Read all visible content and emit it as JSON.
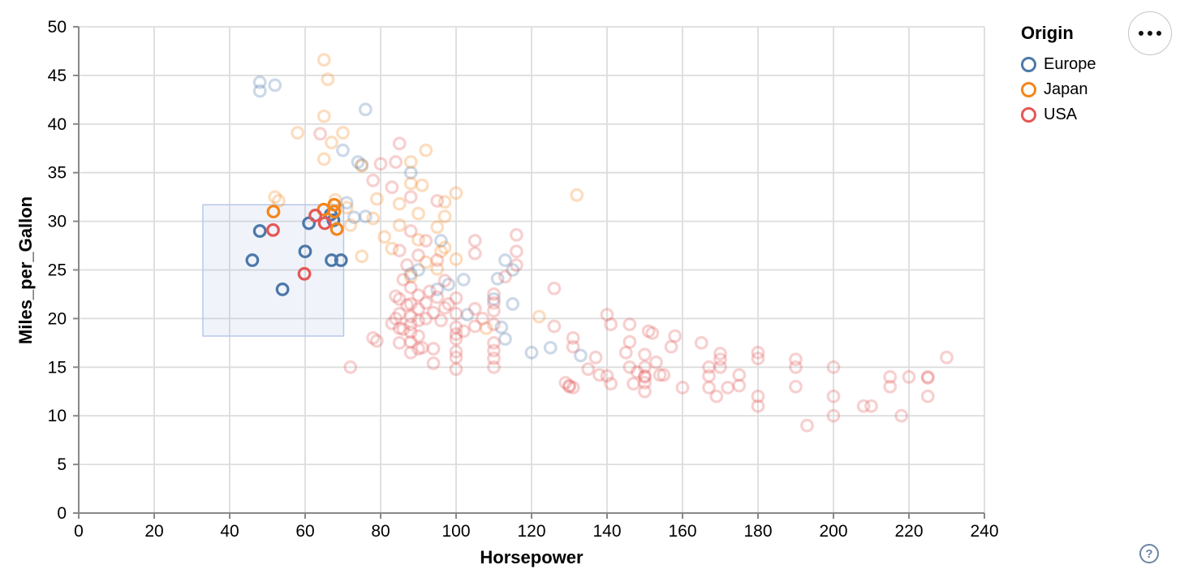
{
  "controls": {
    "menu_tooltip": "options",
    "help_glyph": "?"
  },
  "chart_data": {
    "type": "scatter",
    "title": "",
    "xlabel": "Horsepower",
    "ylabel": "Miles_per_Gallon",
    "xlim": [
      0,
      240
    ],
    "ylim": [
      0,
      50
    ],
    "x_ticks": [
      0,
      20,
      40,
      60,
      80,
      100,
      120,
      140,
      160,
      180,
      200,
      220,
      240
    ],
    "y_ticks": [
      0,
      5,
      10,
      15,
      20,
      25,
      30,
      35,
      40,
      45,
      50
    ],
    "grid": true,
    "mark": {
      "shape": "ring",
      "radius": 6.8,
      "stroke_width": 3.2,
      "unselected_opacity": 0.28
    },
    "colors": {
      "Europe": "#4c78a8",
      "Japan": "#f58518",
      "USA": "#e45756",
      "grid": "#dddddd",
      "axis": "#888888",
      "label": "#000000",
      "brush_fill": "rgba(130,160,210,0.12)",
      "brush_stroke": "#b5c8e8"
    },
    "legend": {
      "title": "Origin",
      "position": "top-right",
      "entries": [
        {
          "label": "Europe",
          "color_key": "Europe"
        },
        {
          "label": "Japan",
          "color_key": "Japan"
        },
        {
          "label": "USA",
          "color_key": "USA"
        }
      ]
    },
    "brush_selection": {
      "hp": [
        32.9,
        70.2
      ],
      "mpg": [
        18.2,
        31.7
      ]
    },
    "points_format": [
      "horsepower",
      "miles_per_gallon",
      "origin(E|J|U)",
      "selected(1|0)"
    ],
    "points": [
      [
        46,
        26,
        "E",
        1
      ],
      [
        48,
        29,
        "E",
        1
      ],
      [
        54,
        23,
        "E",
        1
      ],
      [
        60,
        26.9,
        "E",
        1
      ],
      [
        61,
        29.8,
        "E",
        1
      ],
      [
        67,
        26,
        "E",
        1
      ],
      [
        69.5,
        26,
        "E",
        1
      ],
      [
        66.8,
        30.7,
        "E",
        1
      ],
      [
        67.5,
        30.1,
        "E",
        1
      ],
      [
        51.6,
        31,
        "J",
        1
      ],
      [
        64.9,
        31.2,
        "J",
        1
      ],
      [
        67.7,
        31.7,
        "J",
        1
      ],
      [
        67.7,
        31,
        "J",
        1
      ],
      [
        68.4,
        29.2,
        "J",
        1
      ],
      [
        51.5,
        29.1,
        "U",
        1
      ],
      [
        59.8,
        24.6,
        "U",
        1
      ],
      [
        62.7,
        30.6,
        "U",
        1
      ],
      [
        65.2,
        29.8,
        "U",
        1
      ],
      [
        48,
        43.4,
        "E",
        0
      ],
      [
        48,
        44.3,
        "E",
        0
      ],
      [
        52,
        44,
        "E",
        0
      ],
      [
        76,
        41.5,
        "E",
        0
      ],
      [
        70,
        37.3,
        "E",
        0
      ],
      [
        74,
        36.1,
        "E",
        0
      ],
      [
        75,
        35.8,
        "E",
        0
      ],
      [
        88,
        35,
        "E",
        0
      ],
      [
        71,
        31.9,
        "E",
        0
      ],
      [
        76,
        30.5,
        "E",
        0
      ],
      [
        73,
        30.4,
        "E",
        0
      ],
      [
        96,
        28,
        "E",
        0
      ],
      [
        90,
        25,
        "E",
        0
      ],
      [
        88,
        24.6,
        "E",
        0
      ],
      [
        95,
        23,
        "E",
        0
      ],
      [
        113,
        26,
        "E",
        0
      ],
      [
        115,
        25,
        "E",
        0
      ],
      [
        111,
        24.1,
        "E",
        0
      ],
      [
        110,
        22,
        "E",
        0
      ],
      [
        103,
        20.4,
        "E",
        0
      ],
      [
        112,
        19.1,
        "E",
        0
      ],
      [
        113,
        17.9,
        "E",
        0
      ],
      [
        125,
        17,
        "E",
        0
      ],
      [
        133,
        16.2,
        "E",
        0
      ],
      [
        98,
        23.5,
        "E",
        0
      ],
      [
        102,
        24,
        "E",
        0
      ],
      [
        115,
        21.5,
        "E",
        0
      ],
      [
        120,
        16.5,
        "E",
        0
      ],
      [
        65,
        46.6,
        "J",
        0
      ],
      [
        66,
        44.6,
        "J",
        0
      ],
      [
        65,
        40.8,
        "J",
        0
      ],
      [
        67,
        38.1,
        "J",
        0
      ],
      [
        70,
        39.1,
        "J",
        0
      ],
      [
        58,
        39.1,
        "J",
        0
      ],
      [
        65,
        36.4,
        "J",
        0
      ],
      [
        92,
        37.3,
        "J",
        0
      ],
      [
        88,
        36.1,
        "J",
        0
      ],
      [
        88,
        33.9,
        "J",
        0
      ],
      [
        91,
        33.7,
        "J",
        0
      ],
      [
        100,
        32.9,
        "J",
        0
      ],
      [
        97,
        32,
        "J",
        0
      ],
      [
        132,
        32.7,
        "J",
        0
      ],
      [
        52,
        32.5,
        "J",
        0
      ],
      [
        53,
        32.1,
        "J",
        0
      ],
      [
        75,
        35.7,
        "J",
        0
      ],
      [
        68,
        32.2,
        "J",
        0
      ],
      [
        71,
        31.4,
        "J",
        0
      ],
      [
        72,
        29.6,
        "J",
        0
      ],
      [
        75,
        26.4,
        "J",
        0
      ],
      [
        78,
        30.3,
        "J",
        0
      ],
      [
        81,
        28.4,
        "J",
        0
      ],
      [
        83,
        27.2,
        "J",
        0
      ],
      [
        85,
        29.6,
        "J",
        0
      ],
      [
        88,
        24.3,
        "J",
        0
      ],
      [
        90,
        28.1,
        "J",
        0
      ],
      [
        92,
        25.8,
        "J",
        0
      ],
      [
        95,
        25.1,
        "J",
        0
      ],
      [
        97,
        30.5,
        "J",
        0
      ],
      [
        97,
        27.3,
        "J",
        0
      ],
      [
        100,
        26.1,
        "J",
        0
      ],
      [
        96,
        26.9,
        "J",
        0
      ],
      [
        122,
        20.2,
        "J",
        0
      ],
      [
        108,
        19,
        "J",
        0
      ],
      [
        95,
        29.4,
        "J",
        0
      ],
      [
        85,
        31.8,
        "J",
        0
      ],
      [
        90,
        30.8,
        "J",
        0
      ],
      [
        79,
        32.3,
        "J",
        0
      ],
      [
        64,
        39,
        "U",
        0
      ],
      [
        80,
        35.9,
        "U",
        0
      ],
      [
        84,
        36.1,
        "U",
        0
      ],
      [
        85,
        38,
        "U",
        0
      ],
      [
        83,
        33.5,
        "U",
        0
      ],
      [
        95,
        32.1,
        "U",
        0
      ],
      [
        78,
        34.2,
        "U",
        0
      ],
      [
        88,
        32.5,
        "U",
        0
      ],
      [
        116,
        28.6,
        "U",
        0
      ],
      [
        116,
        26.9,
        "U",
        0
      ],
      [
        116,
        25.5,
        "U",
        0
      ],
      [
        105,
        28,
        "U",
        0
      ],
      [
        105,
        26.7,
        "U",
        0
      ],
      [
        88,
        29,
        "U",
        0
      ],
      [
        92,
        28,
        "U",
        0
      ],
      [
        85,
        27,
        "U",
        0
      ],
      [
        90,
        26.5,
        "U",
        0
      ],
      [
        95,
        26,
        "U",
        0
      ],
      [
        87,
        25.5,
        "U",
        0
      ],
      [
        126,
        23.1,
        "U",
        0
      ],
      [
        113,
        24.3,
        "U",
        0
      ],
      [
        86,
        24,
        "U",
        0
      ],
      [
        88,
        23.2,
        "U",
        0
      ],
      [
        90,
        22.4,
        "U",
        0
      ],
      [
        92,
        21.6,
        "U",
        0
      ],
      [
        95,
        22.2,
        "U",
        0
      ],
      [
        97,
        21.1,
        "U",
        0
      ],
      [
        100,
        22.1,
        "U",
        0
      ],
      [
        100,
        20.5,
        "U",
        0
      ],
      [
        105,
        21,
        "U",
        0
      ],
      [
        94,
        20.6,
        "U",
        0
      ],
      [
        96,
        19.8,
        "U",
        0
      ],
      [
        98,
        21.5,
        "U",
        0
      ],
      [
        100,
        19.1,
        "U",
        0
      ],
      [
        100,
        18.4,
        "U",
        0
      ],
      [
        100,
        17.9,
        "U",
        0
      ],
      [
        100,
        16.6,
        "U",
        0
      ],
      [
        110,
        22.5,
        "U",
        0
      ],
      [
        110,
        21.6,
        "U",
        0
      ],
      [
        110,
        20.8,
        "U",
        0
      ],
      [
        110,
        19.4,
        "U",
        0
      ],
      [
        110,
        17.5,
        "U",
        0
      ],
      [
        110,
        16.7,
        "U",
        0
      ],
      [
        110,
        15.9,
        "U",
        0
      ],
      [
        110,
        15,
        "U",
        0
      ],
      [
        105,
        19.2,
        "U",
        0
      ],
      [
        107,
        20,
        "U",
        0
      ],
      [
        102,
        18.7,
        "U",
        0
      ],
      [
        94,
        16.9,
        "U",
        0
      ],
      [
        94,
        15.4,
        "U",
        0
      ],
      [
        100,
        16,
        "U",
        0
      ],
      [
        100,
        14.8,
        "U",
        0
      ],
      [
        88,
        21.5,
        "U",
        0
      ],
      [
        90,
        21,
        "U",
        0
      ],
      [
        93,
        22.8,
        "U",
        0
      ],
      [
        97,
        23.9,
        "U",
        0
      ],
      [
        85,
        22,
        "U",
        0
      ],
      [
        84,
        22.3,
        "U",
        0
      ],
      [
        87,
        21.4,
        "U",
        0
      ],
      [
        88,
        20.2,
        "U",
        0
      ],
      [
        88,
        19.4,
        "U",
        0
      ],
      [
        88,
        18.6,
        "U",
        0
      ],
      [
        88,
        17.6,
        "U",
        0
      ],
      [
        88,
        16.5,
        "U",
        0
      ],
      [
        85,
        20.5,
        "U",
        0
      ],
      [
        85,
        19,
        "U",
        0
      ],
      [
        85,
        17.5,
        "U",
        0
      ],
      [
        90,
        19.8,
        "U",
        0
      ],
      [
        90,
        18.2,
        "U",
        0
      ],
      [
        90,
        16.9,
        "U",
        0
      ],
      [
        84,
        20,
        "U",
        0
      ],
      [
        86,
        18.9,
        "U",
        0
      ],
      [
        91,
        17,
        "U",
        0
      ],
      [
        92,
        20,
        "U",
        0
      ],
      [
        83,
        19.5,
        "U",
        0
      ],
      [
        72,
        15,
        "U",
        0
      ],
      [
        78,
        18,
        "U",
        0
      ],
      [
        79,
        17.7,
        "U",
        0
      ],
      [
        126,
        19.2,
        "U",
        0
      ],
      [
        131,
        18,
        "U",
        0
      ],
      [
        131,
        17.1,
        "U",
        0
      ],
      [
        129,
        13.4,
        "U",
        0
      ],
      [
        131,
        12.9,
        "U",
        0
      ],
      [
        130,
        13,
        "U",
        0
      ],
      [
        130,
        13.1,
        "U",
        0
      ],
      [
        135,
        14.8,
        "U",
        0
      ],
      [
        138,
        14.2,
        "U",
        0
      ],
      [
        140,
        14.1,
        "U",
        0
      ],
      [
        141,
        13.3,
        "U",
        0
      ],
      [
        140,
        20.4,
        "U",
        0
      ],
      [
        141,
        19.4,
        "U",
        0
      ],
      [
        146,
        19.4,
        "U",
        0
      ],
      [
        146,
        17.6,
        "U",
        0
      ],
      [
        151,
        18.7,
        "U",
        0
      ],
      [
        152,
        18.5,
        "U",
        0
      ],
      [
        146,
        15,
        "U",
        0
      ],
      [
        147,
        13.3,
        "U",
        0
      ],
      [
        150,
        16.3,
        "U",
        0
      ],
      [
        150,
        15,
        "U",
        0
      ],
      [
        150,
        14.1,
        "U",
        0
      ],
      [
        150,
        14,
        "U",
        0
      ],
      [
        150,
        13.4,
        "U",
        0
      ],
      [
        150,
        12.5,
        "U",
        0
      ],
      [
        154,
        14.2,
        "U",
        0
      ],
      [
        155,
        14.2,
        "U",
        0
      ],
      [
        158,
        18.2,
        "U",
        0
      ],
      [
        160,
        12.9,
        "U",
        0
      ],
      [
        157,
        17.1,
        "U",
        0
      ],
      [
        145,
        16.5,
        "U",
        0
      ],
      [
        153,
        15.5,
        "U",
        0
      ],
      [
        148,
        14.5,
        "U",
        0
      ],
      [
        137,
        16,
        "U",
        0
      ],
      [
        165,
        17.5,
        "U",
        0
      ],
      [
        170,
        16.4,
        "U",
        0
      ],
      [
        170,
        15.8,
        "U",
        0
      ],
      [
        170,
        15,
        "U",
        0
      ],
      [
        167,
        15,
        "U",
        0
      ],
      [
        167,
        14.1,
        "U",
        0
      ],
      [
        167,
        12.9,
        "U",
        0
      ],
      [
        169,
        12,
        "U",
        0
      ],
      [
        172,
        12.9,
        "U",
        0
      ],
      [
        175,
        14.2,
        "U",
        0
      ],
      [
        175,
        13.1,
        "U",
        0
      ],
      [
        180,
        16.5,
        "U",
        0
      ],
      [
        180,
        15.9,
        "U",
        0
      ],
      [
        180,
        12,
        "U",
        0
      ],
      [
        180,
        11,
        "U",
        0
      ],
      [
        190,
        15.8,
        "U",
        0
      ],
      [
        190,
        15,
        "U",
        0
      ],
      [
        190,
        13,
        "U",
        0
      ],
      [
        193,
        9,
        "U",
        0
      ],
      [
        200,
        15,
        "U",
        0
      ],
      [
        200,
        12,
        "U",
        0
      ],
      [
        200,
        10,
        "U",
        0
      ],
      [
        208,
        11,
        "U",
        0
      ],
      [
        210,
        11,
        "U",
        0
      ],
      [
        218,
        10,
        "U",
        0
      ],
      [
        215,
        14,
        "U",
        0
      ],
      [
        215,
        13,
        "U",
        0
      ],
      [
        220,
        14,
        "U",
        0
      ],
      [
        225,
        14,
        "U",
        0
      ],
      [
        225,
        13.9,
        "U",
        0
      ],
      [
        225,
        12,
        "U",
        0
      ],
      [
        230,
        16,
        "U",
        0
      ]
    ]
  }
}
